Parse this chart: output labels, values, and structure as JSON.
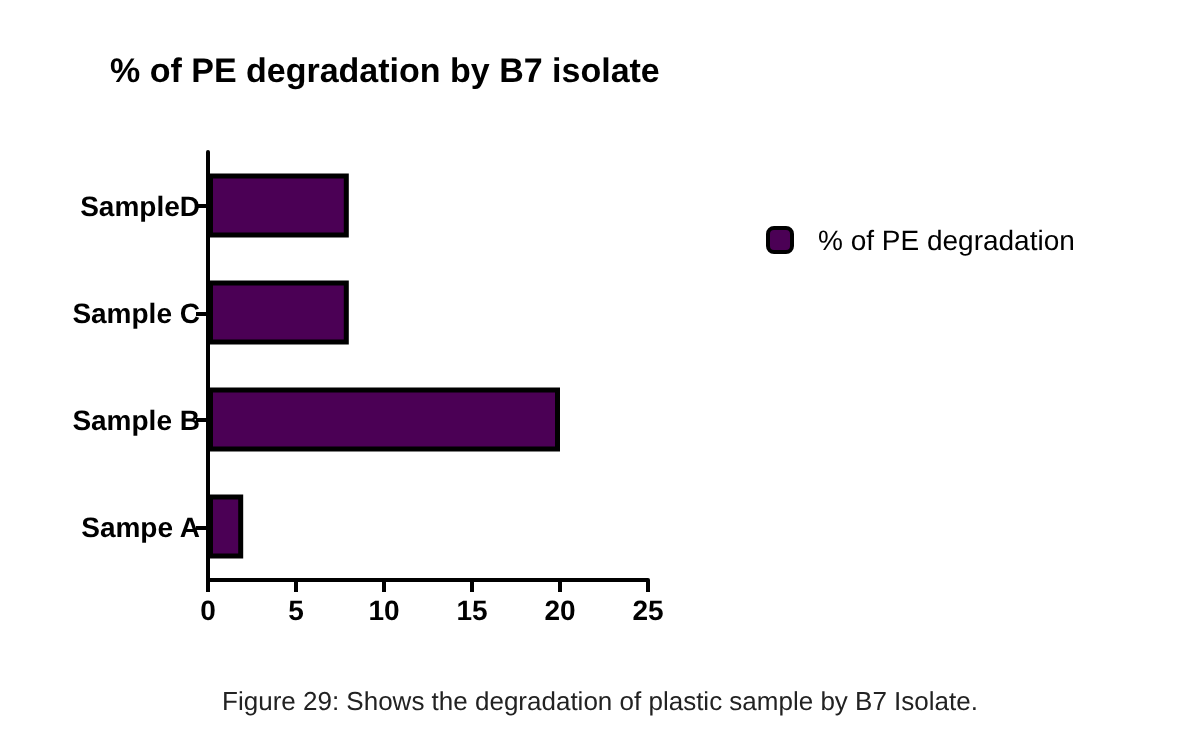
{
  "chart_data": {
    "type": "bar",
    "orientation": "horizontal",
    "title": "% of PE degradation by B7 isolate",
    "categories": [
      "SampleD",
      "Sample C",
      "Sample B",
      "Sampe A"
    ],
    "series": [
      {
        "name": "% of PE degradation",
        "color": "#4b0055",
        "values": [
          8,
          8,
          20,
          2
        ]
      }
    ],
    "xlim": [
      0,
      25
    ],
    "xticks": [
      0,
      5,
      10,
      15,
      20,
      25
    ],
    "grid": false,
    "legend": "right",
    "annotations": [
      "Figure 29: Shows the degradation of plastic sample by B7 Isolate."
    ]
  }
}
